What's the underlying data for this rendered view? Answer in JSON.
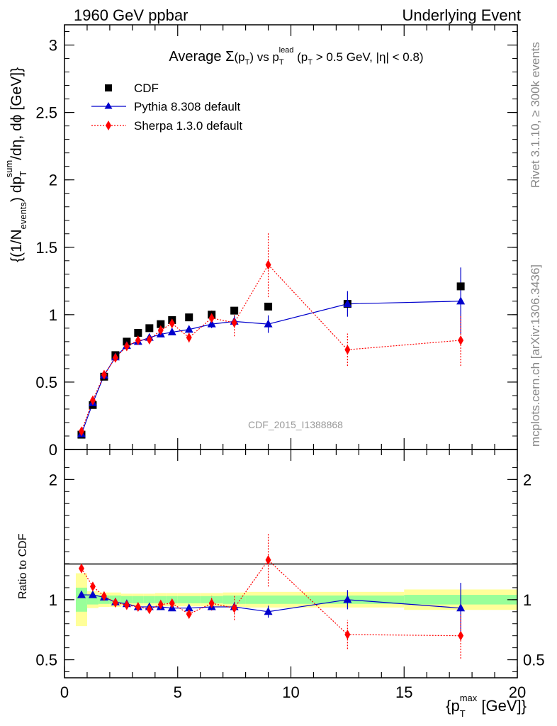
{
  "header": {
    "left": "1960 GeV ppbar",
    "right": "Underlying Event"
  },
  "chart_data": [
    {
      "type": "scatter",
      "title_parts": {
        "prefix": "Average ",
        "sigma": "Σ",
        "pt1": "(p",
        "pt1_sub": "T",
        "pt1_close": ") vs p",
        "lead_sub": "T",
        "lead_sup": "lead",
        "cut": " (p",
        "cut_sub": "T",
        "cut_rest": " > 0.5 GeV, |η| < 0.8)"
      },
      "ylabel_parts": {
        "a": "{(1/N",
        "a_sub": "events",
        "b": ") dp",
        "b_sub": "T",
        "b_sup": "sum",
        "c": "/dη, dϕ [GeV]}"
      },
      "xlabel_parts": {
        "a": "{p",
        "a_sub": "T",
        "a_sup": "max",
        "b": " [GeV]}"
      },
      "watermark": "CDF_2015_I1388868",
      "xlim": [
        0,
        20
      ],
      "ylim": [
        0,
        3.15
      ],
      "yticks": [
        0,
        0.5,
        1,
        1.5,
        2,
        2.5,
        3
      ],
      "ytick_labels": [
        "0",
        "0.5",
        "1",
        "1.5",
        "2",
        "2.5",
        "3"
      ],
      "legend": [
        {
          "key": "cdf",
          "label": "CDF"
        },
        {
          "key": "pythia",
          "label": "Pythia 8.308 default"
        },
        {
          "key": "sherpa",
          "label": "Sherpa 1.3.0 default"
        }
      ],
      "series": [
        {
          "key": "cdf",
          "name": "CDF",
          "color": "#000000",
          "marker": "square",
          "x": [
            0.75,
            1.25,
            1.75,
            2.25,
            2.75,
            3.25,
            3.75,
            4.25,
            4.75,
            5.5,
            6.5,
            7.5,
            9.0,
            12.5,
            17.5
          ],
          "y": [
            0.11,
            0.33,
            0.54,
            0.7,
            0.8,
            0.865,
            0.9,
            0.93,
            0.96,
            0.98,
            1.0,
            1.03,
            1.06,
            1.08,
            1.21
          ],
          "err": [
            0.01,
            0.01,
            0.01,
            0.01,
            0.01,
            0.01,
            0.01,
            0.01,
            0.01,
            0.01,
            0.01,
            0.01,
            0.01,
            0.02,
            0.02
          ]
        },
        {
          "key": "pythia",
          "name": "Pythia 8.308 default",
          "color": "#0000cc",
          "marker": "triangle",
          "x": [
            0.75,
            1.25,
            1.75,
            2.25,
            2.75,
            3.25,
            3.75,
            4.25,
            4.75,
            5.5,
            6.5,
            7.5,
            9.0,
            12.5,
            17.5
          ],
          "y": [
            0.115,
            0.345,
            0.55,
            0.685,
            0.77,
            0.8,
            0.83,
            0.855,
            0.87,
            0.89,
            0.93,
            0.95,
            0.93,
            1.08,
            1.1
          ],
          "err": [
            0.01,
            0.01,
            0.01,
            0.01,
            0.015,
            0.015,
            0.015,
            0.02,
            0.02,
            0.02,
            0.03,
            0.045,
            0.065,
            0.095,
            0.25
          ]
        },
        {
          "key": "sherpa",
          "name": "Sherpa 1.3.0 default",
          "color": "#ff0000",
          "marker": "diamond",
          "x": [
            0.75,
            1.25,
            1.75,
            2.25,
            2.75,
            3.25,
            3.75,
            4.25,
            4.75,
            5.5,
            6.5,
            7.5,
            9.0,
            12.5,
            17.5
          ],
          "y": [
            0.135,
            0.365,
            0.555,
            0.68,
            0.765,
            0.81,
            0.815,
            0.885,
            0.935,
            0.83,
            0.975,
            0.94,
            1.37,
            0.74,
            0.81
          ],
          "err": [
            0.01,
            0.01,
            0.01,
            0.015,
            0.015,
            0.02,
            0.02,
            0.025,
            0.03,
            0.035,
            0.06,
            0.1,
            0.24,
            0.12,
            0.19
          ]
        }
      ]
    },
    {
      "type": "scatter",
      "ylabel": "Ratio to CDF",
      "xlim": [
        0,
        20
      ],
      "ylim": [
        0.35,
        2.25
      ],
      "yticks": [
        0.5,
        1,
        2
      ],
      "ytick_labels": [
        "0.5",
        "1",
        "2"
      ],
      "xticks": [
        0,
        5,
        10,
        15,
        20
      ],
      "xtick_labels": [
        "0",
        "5",
        "10",
        "15",
        "20"
      ],
      "bands": {
        "edges": [
          0.5,
          1.0,
          1.5,
          2.0,
          2.5,
          3.0,
          3.5,
          4.0,
          4.5,
          5.0,
          6.0,
          7.0,
          8.0,
          10.0,
          15.0,
          20.0
        ],
        "yellow_half": [
          0.22,
          0.07,
          0.06,
          0.06,
          0.05,
          0.05,
          0.05,
          0.055,
          0.055,
          0.055,
          0.055,
          0.06,
          0.065,
          0.065,
          0.085
        ],
        "green_half": [
          0.1,
          0.04,
          0.035,
          0.035,
          0.03,
          0.03,
          0.03,
          0.03,
          0.03,
          0.03,
          0.03,
          0.035,
          0.035,
          0.035,
          0.04
        ]
      },
      "series": [
        {
          "key": "pythia",
          "name": "Pythia 8.308 default",
          "color": "#0000cc",
          "marker": "triangle",
          "x": [
            0.75,
            1.25,
            1.75,
            2.25,
            2.75,
            3.25,
            3.75,
            4.25,
            4.75,
            5.5,
            6.5,
            7.5,
            9.0,
            12.5,
            17.5
          ],
          "y": [
            1.04,
            1.04,
            1.02,
            0.98,
            0.965,
            0.94,
            0.94,
            0.94,
            0.93,
            0.93,
            0.94,
            0.94,
            0.9,
            1.0,
            0.93
          ],
          "err": [
            0.01,
            0.01,
            0.01,
            0.01,
            0.015,
            0.015,
            0.015,
            0.015,
            0.015,
            0.02,
            0.025,
            0.04,
            0.05,
            0.08,
            0.21
          ]
        },
        {
          "key": "sherpa",
          "name": "Sherpa 1.3.0 default",
          "color": "#ff0000",
          "marker": "diamond",
          "x": [
            0.75,
            1.25,
            1.75,
            2.25,
            2.75,
            3.25,
            3.75,
            4.25,
            4.75,
            5.5,
            6.5,
            7.5,
            9.0,
            12.5,
            17.5
          ],
          "y": [
            1.26,
            1.11,
            1.03,
            0.975,
            0.955,
            0.94,
            0.92,
            0.96,
            0.97,
            0.88,
            0.97,
            0.93,
            1.33,
            0.71,
            0.7
          ],
          "err": [
            0.02,
            0.02,
            0.015,
            0.015,
            0.015,
            0.02,
            0.02,
            0.025,
            0.025,
            0.03,
            0.06,
            0.1,
            0.22,
            0.12,
            0.19
          ]
        }
      ]
    }
  ],
  "side": {
    "rivet": "Rivet 3.1.10, ≥ 300k events",
    "mcplots": "mcplots.cern.ch [arXiv:1306.3436]"
  }
}
